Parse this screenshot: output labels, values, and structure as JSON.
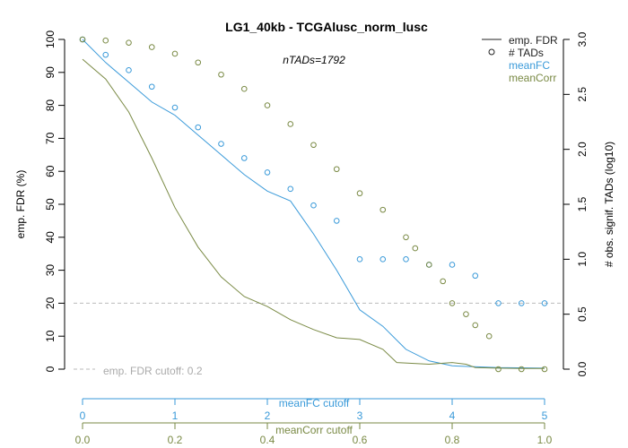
{
  "chart_data": {
    "type": "line",
    "title": "LG1_40kb - TCGAlusc_norm_lusc",
    "subtitle": "nTADs=1792",
    "ylabel_left": "emp. FDR (%)",
    "ylabel_right": "# obs. signif. TADs (log10)",
    "xlabel_meanFC": "meanFC cutoff",
    "xlabel_meanCorr": "meanCorr cutoff",
    "ylim_left": [
      0,
      100
    ],
    "ylim_right": [
      0,
      3.0
    ],
    "xlim_meanFC": [
      0,
      5
    ],
    "xlim_meanCorr": [
      0,
      1.0
    ],
    "left_ticks": [
      "0",
      "10",
      "20",
      "30",
      "40",
      "50",
      "60",
      "70",
      "80",
      "90",
      "100"
    ],
    "right_ticks": [
      "0.0",
      "0.5",
      "1.0",
      "1.5",
      "2.0",
      "2.5",
      "3.0"
    ],
    "meanFC_ticks": [
      "0",
      "1",
      "2",
      "3",
      "4",
      "5"
    ],
    "meanCorr_ticks": [
      "0.0",
      "0.2",
      "0.4",
      "0.6",
      "0.8",
      "1.0"
    ],
    "fdr_cutoff": 20,
    "fdr_cutoff_label": "emp. FDR cutoff: 0.2",
    "colors": {
      "meanFC": "#3a9ad9",
      "meanCorr": "#7a8a45",
      "black": "#222222",
      "cutoff": "#bbbbbb"
    },
    "legend": {
      "position": "top-right",
      "items": [
        {
          "label": "emp. FDR",
          "symbol": "line",
          "color": "#222222"
        },
        {
          "label": "# TADs",
          "symbol": "circle",
          "color": "#222222"
        },
        {
          "label": "meanFC",
          "symbol": "none",
          "color": "#3a9ad9"
        },
        {
          "label": "meanCorr",
          "symbol": "none",
          "color": "#7a8a45"
        }
      ]
    },
    "series": [
      {
        "name": "meanFC",
        "fdr_x": [
          0,
          0.25,
          0.5,
          0.75,
          1.0,
          1.25,
          1.5,
          1.75,
          2.0,
          2.25,
          2.5,
          2.75,
          3.0,
          3.25,
          3.5,
          3.75,
          4.0,
          4.5,
          5.0
        ],
        "fdr_y": [
          100,
          93,
          87,
          81,
          77,
          71,
          65,
          59,
          54,
          51,
          41,
          30,
          18,
          13,
          6,
          2.5,
          1.0,
          0.5,
          0.3
        ],
        "tads_x": [
          0,
          0.25,
          0.5,
          0.75,
          1.0,
          1.25,
          1.5,
          1.75,
          2.0,
          2.25,
          2.5,
          2.75,
          3.0,
          3.25,
          3.5,
          3.75,
          4.0,
          4.25,
          4.5,
          4.75,
          5.0
        ],
        "tads_y": [
          3.0,
          2.86,
          2.72,
          2.57,
          2.38,
          2.2,
          2.05,
          1.92,
          1.79,
          1.64,
          1.49,
          1.35,
          1.0,
          1.0,
          1.0,
          0.95,
          0.95,
          0.85,
          0.6,
          0.6,
          0.6
        ]
      },
      {
        "name": "meanCorr",
        "fdr_x": [
          0,
          0.05,
          0.1,
          0.15,
          0.2,
          0.25,
          0.3,
          0.35,
          0.4,
          0.45,
          0.5,
          0.55,
          0.6,
          0.65,
          0.68,
          0.75,
          0.8,
          0.83,
          0.85,
          0.9,
          0.95,
          1.0
        ],
        "fdr_y": [
          94,
          88,
          78,
          64,
          49,
          37,
          28,
          22,
          19,
          15,
          12,
          9.5,
          9,
          6,
          2,
          1.5,
          2,
          1.5,
          0.5,
          0.3,
          0.2,
          0.2
        ],
        "tads_x": [
          0,
          0.05,
          0.1,
          0.15,
          0.2,
          0.25,
          0.3,
          0.35,
          0.4,
          0.45,
          0.5,
          0.55,
          0.6,
          0.65,
          0.7,
          0.72,
          0.75,
          0.78,
          0.8,
          0.83,
          0.85,
          0.88,
          0.9,
          0.95,
          1.0
        ],
        "tads_y": [
          3.0,
          2.99,
          2.97,
          2.93,
          2.87,
          2.79,
          2.68,
          2.55,
          2.4,
          2.23,
          2.04,
          1.82,
          1.6,
          1.45,
          1.2,
          1.1,
          0.95,
          0.8,
          0.6,
          0.5,
          0.4,
          0.3,
          0.0,
          0.0,
          0.0
        ]
      }
    ]
  }
}
